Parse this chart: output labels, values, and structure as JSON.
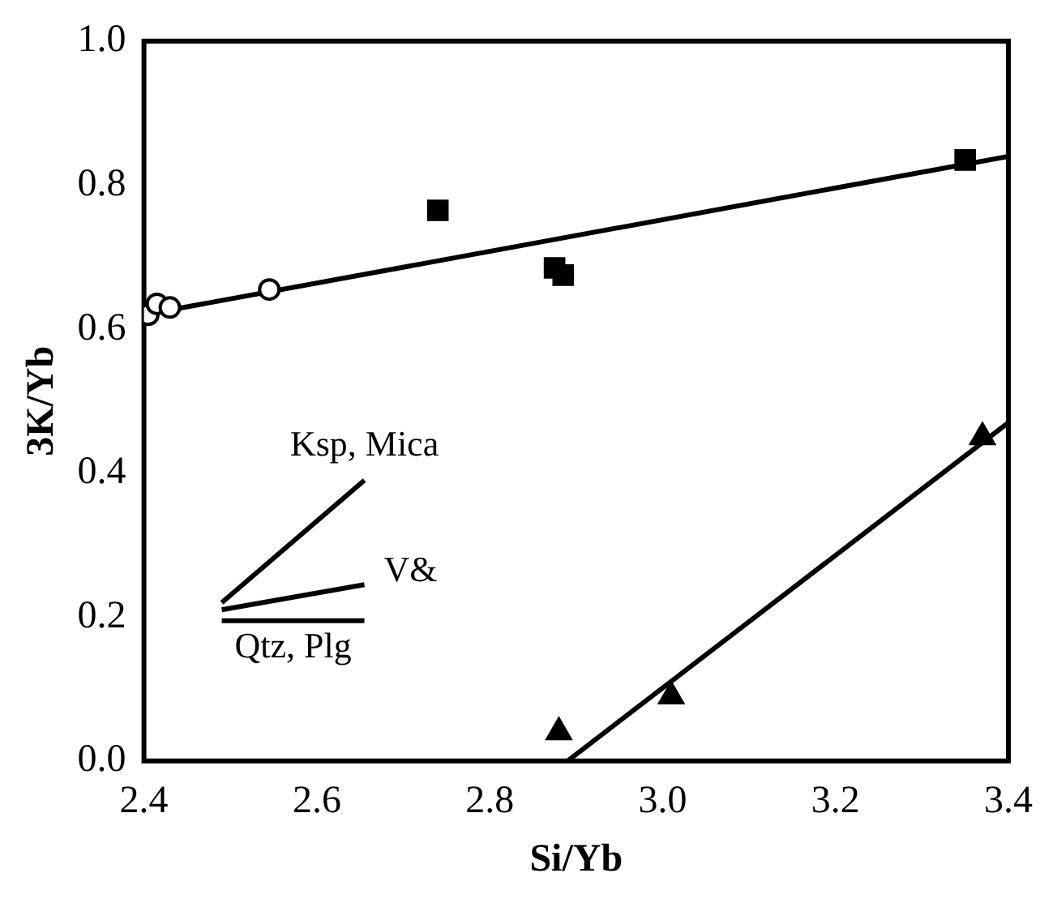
{
  "chart_data": {
    "type": "scatter",
    "xlabel": "Si/Yb",
    "ylabel": "3K/Yb",
    "xlim": [
      2.4,
      3.4
    ],
    "ylim": [
      0,
      1.0
    ],
    "xticks": [
      2.4,
      2.6,
      2.8,
      {
        "value": 3,
        "label": "3.0"
      },
      3.2,
      3.4
    ],
    "yticks": [
      {
        "value": 0,
        "label": "0.0"
      },
      0.2,
      0.4,
      0.6,
      0.8,
      {
        "value": 1,
        "label": "1.0"
      }
    ],
    "grid": false,
    "legend": false,
    "series": [
      {
        "type": "scatter",
        "marker": "circle",
        "color": "#000000",
        "x": [
          2.405,
          2.415,
          2.43,
          2.545
        ],
        "values": [
          0.62,
          0.635,
          0.63,
          0.655
        ]
      },
      {
        "type": "scatter",
        "marker": "square",
        "color": "#000000",
        "x": [
          2.74,
          2.875,
          2.885,
          3.35
        ],
        "values": [
          0.765,
          0.685,
          0.675,
          0.835
        ]
      },
      {
        "type": "scatter",
        "marker": "triangle",
        "color": "#000000",
        "x": [
          2.88,
          3.01,
          3.37
        ],
        "values": [
          0.04,
          0.09,
          0.45
        ]
      },
      {
        "type": "line",
        "color": "#000000",
        "x": [
          2.4,
          3.4
        ],
        "values": [
          0.62,
          0.84
        ]
      },
      {
        "type": "line",
        "color": "#000000",
        "x": [
          2.89,
          3.4
        ],
        "values": [
          0.0,
          0.47
        ]
      },
      {
        "type": "line",
        "name": "Ksp, Mica",
        "color": "#000000",
        "x": [
          2.49,
          2.655
        ],
        "values": [
          0.22,
          0.39
        ]
      },
      {
        "type": "line",
        "name": "V&",
        "color": "#000000",
        "x": [
          2.49,
          2.655
        ],
        "values": [
          0.21,
          0.245
        ]
      },
      {
        "type": "line",
        "name": "Qtz, Plg",
        "color": "#000000",
        "x": [
          2.49,
          2.655
        ],
        "values": [
          0.195,
          0.195
        ]
      }
    ]
  }
}
